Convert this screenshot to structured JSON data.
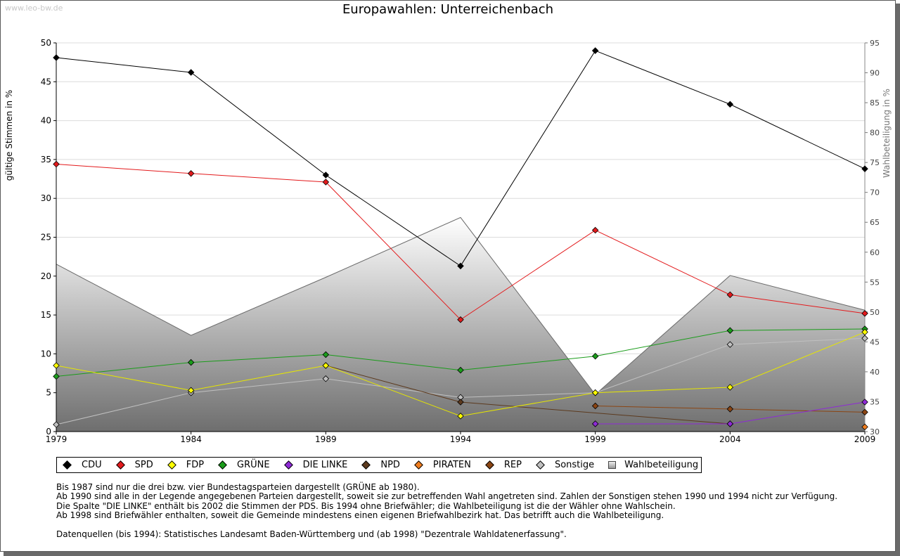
{
  "watermark": "www.leo-bw.de",
  "title": "Europawahlen: Unterreichenbach",
  "chart_data": {
    "type": "line",
    "title": "Europawahlen: Unterreichenbach",
    "ylabel": "gültige Stimmen in %",
    "y2label": "Wahlbeteiligung in %",
    "ylim": [
      0,
      50
    ],
    "y2lim": [
      30,
      95
    ],
    "yticks": [
      "0",
      "5",
      "10",
      "15",
      "20",
      "25",
      "30",
      "35",
      "40",
      "45",
      "50"
    ],
    "y2ticks": [
      "30",
      "35",
      "40",
      "45",
      "50",
      "55",
      "60",
      "65",
      "70",
      "75",
      "80",
      "85",
      "90",
      "95"
    ],
    "x": [
      "1979",
      "1984",
      "1989",
      "1994",
      "1999",
      "2004",
      "2009"
    ],
    "grid": true,
    "legend_position": "bottom",
    "series": [
      {
        "name": "CDU",
        "color": "#000000",
        "values": [
          48.1,
          46.2,
          33.0,
          21.3,
          49.0,
          42.1,
          33.8
        ]
      },
      {
        "name": "SPD",
        "color": "#e31a1c",
        "values": [
          34.4,
          33.2,
          32.1,
          14.4,
          25.9,
          17.6,
          15.2
        ]
      },
      {
        "name": "FDP",
        "color": "#ffff00",
        "values": [
          8.5,
          5.3,
          8.5,
          2.0,
          5.0,
          5.7,
          12.8
        ]
      },
      {
        "name": "GRÜNE",
        "color": "#1a9c1a",
        "values": [
          7.1,
          8.9,
          9.9,
          7.9,
          9.7,
          13.0,
          13.2
        ]
      },
      {
        "name": "DIE LINKE",
        "color": "#8e2ad6",
        "values": [
          null,
          null,
          null,
          null,
          1.0,
          1.0,
          3.8
        ]
      },
      {
        "name": "NPD",
        "color": "#5c3a1e",
        "values": [
          null,
          null,
          8.5,
          3.8,
          null,
          1.0,
          null
        ]
      },
      {
        "name": "PIRATEN",
        "color": "#f07d1e",
        "values": [
          null,
          null,
          null,
          null,
          null,
          null,
          0.6
        ]
      },
      {
        "name": "REP",
        "color": "#8b4513",
        "values": [
          null,
          null,
          null,
          null,
          3.3,
          2.9,
          2.5
        ]
      },
      {
        "name": "Sonstige",
        "color": "#c0c0c0",
        "values": [
          0.9,
          5.0,
          6.8,
          4.4,
          5.0,
          11.2,
          12.0
        ]
      }
    ],
    "area_series": {
      "name": "Wahlbeteiligung",
      "axis": "right",
      "values": [
        58.0,
        46.1,
        55.8,
        65.8,
        36.2,
        56.1,
        50.3
      ]
    }
  },
  "legend": [
    {
      "label": "CDU",
      "color": "#000000"
    },
    {
      "label": "SPD",
      "color": "#e31a1c"
    },
    {
      "label": "FDP",
      "color": "#ffff00"
    },
    {
      "label": "GRÜNE",
      "color": "#1a9c1a"
    },
    {
      "label": "DIE LINKE",
      "color": "#8e2ad6"
    },
    {
      "label": "NPD",
      "color": "#5c3a1e"
    },
    {
      "label": "PIRATEN",
      "color": "#f07d1e"
    },
    {
      "label": "REP",
      "color": "#8b4513"
    },
    {
      "label": "Sonstige",
      "color": "#c0c0c0"
    },
    {
      "label": "Wahlbeteiligung",
      "color": "#aaaaaa"
    }
  ],
  "notes": [
    "Bis 1987 sind nur die drei bzw. vier Bundestagsparteien dargestellt (GRÜNE ab 1980).",
    "Ab 1990 sind alle in der Legende angegebenen Parteien dargestellt, soweit sie zur betreffenden Wahl angetreten sind. Zahlen der Sonstigen stehen 1990 und 1994 nicht zur Verfügung.",
    "Die Spalte \"DIE LINKE\" enthält bis 2002 die Stimmen der PDS. Bis 1994 ohne Briefwähler; die Wahlbeteiligung ist die der Wähler ohne Wahlschein.",
    "Ab 1998 sind Briefwähler enthalten, soweit die Gemeinde mindestens einen eigenen Briefwahlbezirk hat. Das betrifft auch die Wahlbeteiligung."
  ],
  "source": "Datenquellen (bis 1994): Statistisches Landesamt Baden-Württemberg und (ab 1998) \"Dezentrale Wahldatenerfassung\"."
}
